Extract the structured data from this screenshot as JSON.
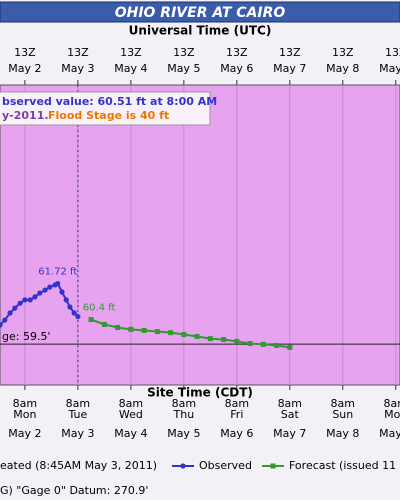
{
  "chart_data": {
    "type": "line",
    "title": "OHIO RIVER AT CAIRO",
    "top_axis_label": "Universal Time (UTC)",
    "bottom_axis_label": "Site Time (CDT)",
    "info_lines": [
      "bserved value: 60.51 ft at 8:00 AM",
      "y-2011.",
      "Flood Stage is 40 ft"
    ],
    "xlim": [
      2.07,
      9.62
    ],
    "ylim": [
      58,
      69
    ],
    "top_ticks": [
      {
        "value": 2.54,
        "label": "13Z",
        "date": "May 2"
      },
      {
        "value": 3.54,
        "label": "13Z",
        "date": "May 3"
      },
      {
        "value": 4.54,
        "label": "13Z",
        "date": "May 4"
      },
      {
        "value": 5.54,
        "label": "13Z",
        "date": "May 5"
      },
      {
        "value": 6.54,
        "label": "13Z",
        "date": "May 6"
      },
      {
        "value": 7.54,
        "label": "13Z",
        "date": "May 7"
      },
      {
        "value": 8.54,
        "label": "13Z",
        "date": "May 8"
      },
      {
        "value": 9.54,
        "label": "13Z",
        "date": "May 9"
      }
    ],
    "bottom_ticks": [
      {
        "value": 2.54,
        "time": "8am",
        "weekday": "Mon",
        "date": "May 2"
      },
      {
        "value": 3.54,
        "time": "8am",
        "weekday": "Tue",
        "date": "May 3"
      },
      {
        "value": 4.54,
        "time": "8am",
        "weekday": "Wed",
        "date": "May 4"
      },
      {
        "value": 5.54,
        "time": "8am",
        "weekday": "Thu",
        "date": "May 5"
      },
      {
        "value": 6.54,
        "time": "8am",
        "weekday": "Fri",
        "date": "May 6"
      },
      {
        "value": 7.54,
        "time": "8am",
        "weekday": "Sat",
        "date": "May 7"
      },
      {
        "value": 8.54,
        "time": "8am",
        "weekday": "Sun",
        "date": "May 8"
      },
      {
        "value": 9.54,
        "time": "8am",
        "weekday": "Mon",
        "date": "May 9"
      }
    ],
    "current_time": 3.54,
    "threshold": {
      "value": 59.5,
      "label": "ge: 59.5'"
    },
    "series": [
      {
        "name": "Observed",
        "color": "#3333cc",
        "marker": "circle",
        "x": [
          2.07,
          2.16,
          2.26,
          2.35,
          2.45,
          2.54,
          2.64,
          2.73,
          2.82,
          2.92,
          3.01,
          3.11,
          3.16,
          3.24,
          3.32,
          3.39,
          3.47,
          3.54
        ],
        "values": [
          60.2,
          60.38,
          60.64,
          60.82,
          61.0,
          61.12,
          61.12,
          61.23,
          61.37,
          61.48,
          61.59,
          61.67,
          61.72,
          61.41,
          61.12,
          60.86,
          60.64,
          60.51
        ],
        "value_labels": [
          null,
          null,
          null,
          null,
          null,
          null,
          null,
          null,
          null,
          null,
          null,
          null,
          "61.72 ft",
          null,
          null,
          null,
          null,
          null
        ]
      },
      {
        "name": "Forecast (issued 11",
        "color": "#339933",
        "marker": "square",
        "x": [
          3.79,
          4.04,
          4.29,
          4.54,
          4.79,
          5.04,
          5.29,
          5.54,
          5.79,
          6.04,
          6.29,
          6.54,
          6.79,
          7.04,
          7.29,
          7.54
        ],
        "values": [
          60.4,
          60.22,
          60.11,
          60.04,
          60.0,
          59.96,
          59.92,
          59.85,
          59.78,
          59.7,
          59.67,
          59.6,
          59.52,
          59.49,
          59.45,
          59.38
        ],
        "value_labels": [
          "60.4 ft",
          null,
          null,
          null,
          null,
          null,
          null,
          null,
          null,
          null,
          null,
          null,
          null,
          null,
          null,
          null
        ]
      }
    ],
    "legend_note": "eated (8:45AM May 3, 2011)",
    "footer": "G) \"Gage 0\" Datum: 270.9'"
  }
}
